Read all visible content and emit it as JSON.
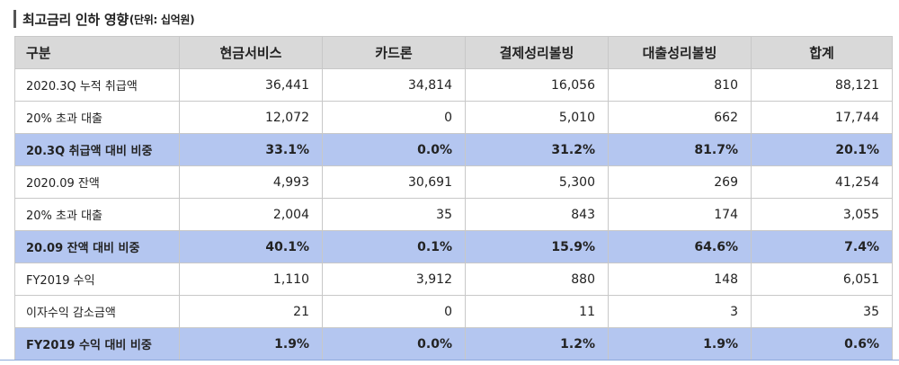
{
  "title": {
    "main": "최고금리 인하 영향",
    "unit": "(단위: 십억원)"
  },
  "table": {
    "headers": [
      "구분",
      "현금서비스",
      "카드론",
      "결제성리볼빙",
      "대출성리볼빙",
      "합계"
    ],
    "rows": [
      {
        "label": "2020.3Q 누적 취급액",
        "values": [
          "36,441",
          "34,814",
          "16,056",
          "810",
          "88,121"
        ],
        "highlight": false
      },
      {
        "label": "20% 초과 대출",
        "values": [
          "12,072",
          "0",
          "5,010",
          "662",
          "17,744"
        ],
        "highlight": false
      },
      {
        "label": "20.3Q 취급액 대비 비중",
        "values": [
          "33.1%",
          "0.0%",
          "31.2%",
          "81.7%",
          "20.1%"
        ],
        "highlight": true
      },
      {
        "label": "2020.09 잔액",
        "values": [
          "4,993",
          "30,691",
          "5,300",
          "269",
          "41,254"
        ],
        "highlight": false
      },
      {
        "label": "20% 초과 대출",
        "values": [
          "2,004",
          "35",
          "843",
          "174",
          "3,055"
        ],
        "highlight": false
      },
      {
        "label": "20.09 잔액 대비 비중",
        "values": [
          "40.1%",
          "0.1%",
          "15.9%",
          "64.6%",
          "7.4%"
        ],
        "highlight": true
      },
      {
        "label": "FY2019 수익",
        "values": [
          "1,110",
          "3,912",
          "880",
          "148",
          "6,051"
        ],
        "highlight": false
      },
      {
        "label": "이자수익 감소금액",
        "values": [
          "21",
          "0",
          "11",
          "3",
          "35"
        ],
        "highlight": false
      },
      {
        "label": "FY2019 수익 대비 비중",
        "values": [
          "1.9%",
          "0.0%",
          "1.2%",
          "1.9%",
          "0.6%"
        ],
        "highlight": true
      }
    ]
  },
  "colors": {
    "header_bg": "#d9d9d9",
    "highlight_bg": "#b4c6f0",
    "border": "#c8c8c8"
  }
}
